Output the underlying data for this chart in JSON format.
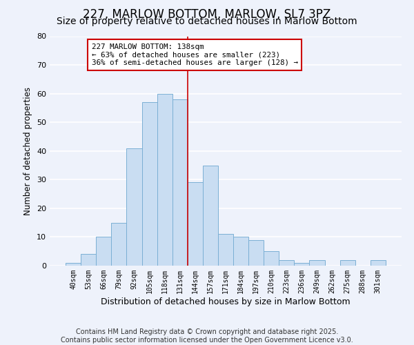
{
  "title": "227, MARLOW BOTTOM, MARLOW, SL7 3PZ",
  "subtitle": "Size of property relative to detached houses in Marlow Bottom",
  "xlabel": "Distribution of detached houses by size in Marlow Bottom",
  "ylabel": "Number of detached properties",
  "categories": [
    "40sqm",
    "53sqm",
    "66sqm",
    "79sqm",
    "92sqm",
    "105sqm",
    "118sqm",
    "131sqm",
    "144sqm",
    "157sqm",
    "171sqm",
    "184sqm",
    "197sqm",
    "210sqm",
    "223sqm",
    "236sqm",
    "249sqm",
    "262sqm",
    "275sqm",
    "288sqm",
    "301sqm"
  ],
  "values": [
    1,
    4,
    10,
    15,
    41,
    57,
    60,
    58,
    29,
    35,
    11,
    10,
    9,
    5,
    2,
    1,
    2,
    0,
    2,
    0,
    2
  ],
  "bar_color": "#c9ddf2",
  "bar_edge_color": "#7aafd4",
  "bar_width": 1.0,
  "ylim": [
    0,
    80
  ],
  "yticks": [
    0,
    10,
    20,
    30,
    40,
    50,
    60,
    70,
    80
  ],
  "vline_x": 7.5,
  "vline_color": "#cc0000",
  "annotation_text": "227 MARLOW BOTTOM: 138sqm\n← 63% of detached houses are smaller (223)\n36% of semi-detached houses are larger (128) →",
  "annotation_box_color": "#ffffff",
  "annotation_edge_color": "#cc0000",
  "background_color": "#eef2fb",
  "grid_color": "#ffffff",
  "title_fontsize": 12,
  "subtitle_fontsize": 10,
  "footer_text": "Contains HM Land Registry data © Crown copyright and database right 2025.\nContains public sector information licensed under the Open Government Licence v3.0.",
  "footer_fontsize": 7
}
